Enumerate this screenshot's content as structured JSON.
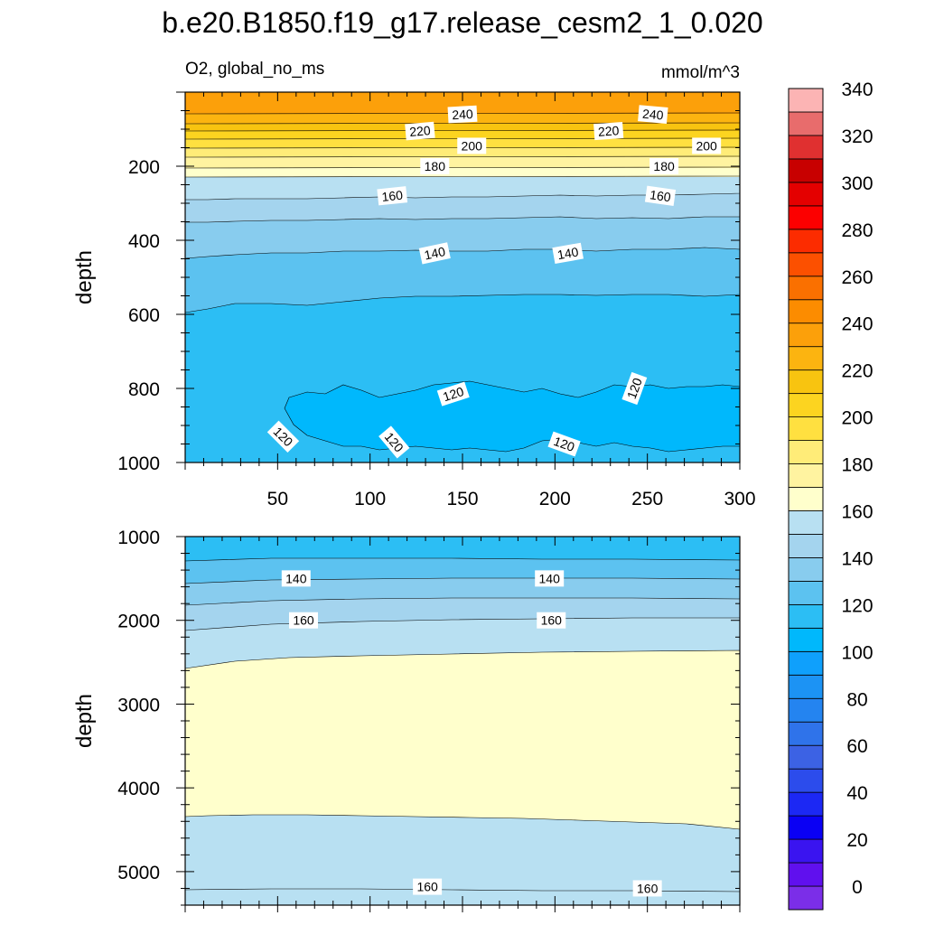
{
  "chart_data": {
    "type": "heatmap",
    "title": "b.e20.B1850.f19_g17.release_cesm2_1_0.020",
    "subtitle_left": "O2, global_no_ms",
    "subtitle_right": "mmol/m^3",
    "panels": [
      {
        "id": "upper",
        "ylabel": "depth",
        "ylim": [
          0,
          1000
        ],
        "xlim": [
          0,
          300
        ],
        "yticks": [
          "200",
          "400",
          "600",
          "800",
          "1000"
        ],
        "ytick_values": [
          200,
          400,
          600,
          800,
          1000
        ],
        "xticks": [
          "50",
          "100",
          "150",
          "200",
          "250",
          "300"
        ],
        "xtick_values": [
          50,
          100,
          150,
          200,
          250,
          300
        ],
        "contour_labels": [
          {
            "text": "240",
            "x": 150,
            "y": 60
          },
          {
            "text": "240",
            "x": 253,
            "y": 60
          },
          {
            "text": "220",
            "x": 127,
            "y": 105
          },
          {
            "text": "220",
            "x": 229,
            "y": 105
          },
          {
            "text": "200",
            "x": 155,
            "y": 145
          },
          {
            "text": "200",
            "x": 282,
            "y": 145
          },
          {
            "text": "180",
            "x": 135,
            "y": 200
          },
          {
            "text": "180",
            "x": 259,
            "y": 200
          },
          {
            "text": "160",
            "x": 112,
            "y": 280
          },
          {
            "text": "160",
            "x": 257,
            "y": 280
          },
          {
            "text": "140",
            "x": 135,
            "y": 435
          },
          {
            "text": "140",
            "x": 207,
            "y": 435
          },
          {
            "text": "120",
            "x": 145,
            "y": 815
          },
          {
            "text": "120",
            "x": 243,
            "y": 800
          },
          {
            "text": "120",
            "x": 53,
            "y": 930
          },
          {
            "text": "120",
            "x": 113,
            "y": 945
          },
          {
            "text": "120",
            "x": 205,
            "y": 950
          }
        ]
      },
      {
        "id": "lower",
        "ylabel": "depth",
        "ylim": [
          1000,
          5400
        ],
        "xlim": [
          0,
          300
        ],
        "yticks": [
          "1000",
          "2000",
          "3000",
          "4000",
          "5000"
        ],
        "ytick_values": [
          1000,
          2000,
          3000,
          4000,
          5000
        ],
        "contour_labels": [
          {
            "text": "140",
            "x": 60,
            "y": 1500
          },
          {
            "text": "140",
            "x": 197,
            "y": 1500
          },
          {
            "text": "160",
            "x": 64,
            "y": 2000
          },
          {
            "text": "160",
            "x": 198,
            "y": 2000
          },
          {
            "text": "160",
            "x": 131,
            "y": 5180
          },
          {
            "text": "160",
            "x": 250,
            "y": 5200
          }
        ]
      }
    ],
    "colorbar": {
      "labels": [
        "0",
        "20",
        "40",
        "60",
        "80",
        "100",
        "120",
        "140",
        "160",
        "180",
        "200",
        "220",
        "240",
        "260",
        "280",
        "300",
        "320",
        "340"
      ],
      "label_values": [
        0,
        20,
        40,
        60,
        80,
        100,
        120,
        140,
        160,
        180,
        200,
        220,
        240,
        260,
        280,
        300,
        320,
        340
      ],
      "levels_min": -10,
      "levels_step": 10,
      "colors": [
        "#7b2ee8",
        "#6010ee",
        "#3a14f0",
        "#0a00f4",
        "#1c28f4",
        "#2c4cec",
        "#3c62e4",
        "#2f73ea",
        "#2484f0",
        "#1c93f4",
        "#0fa0fc",
        "#00b8fc",
        "#2cbef4",
        "#5cc2f0",
        "#88ccee",
        "#a4d4ee",
        "#b8e0f2",
        "#ffffcc",
        "#fff3a0",
        "#ffec78",
        "#ffe040",
        "#fcd420",
        "#f8c410",
        "#fcb410",
        "#fca00a",
        "#fc8c00",
        "#fa7000",
        "#fc5000",
        "#fc2c00",
        "#fc0000",
        "#e40000",
        "#c80000",
        "#e03030",
        "#e86c6c",
        "#fcb4b4"
      ]
    }
  }
}
